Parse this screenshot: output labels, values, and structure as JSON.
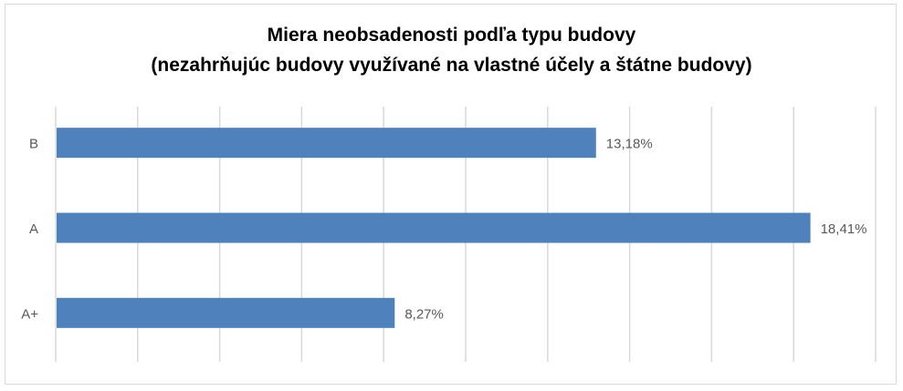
{
  "chart_data": {
    "type": "bar",
    "orientation": "horizontal",
    "title": "Miera neobsadenosti podľa typu budovy",
    "subtitle": "(nezahrňujúc budovy využívané na vlastné účely a štátne budovy)",
    "categories": [
      "B",
      "A",
      "A+"
    ],
    "values": [
      13.18,
      18.41,
      8.27
    ],
    "data_labels": [
      "13,18%",
      "18,41%",
      "8,27%"
    ],
    "xlabel": "",
    "ylabel": "",
    "xlim": [
      0,
      20
    ],
    "grid_step": 2,
    "grid": true,
    "legend": "none",
    "colors": {
      "bar": "#4f81bd",
      "grid": "#d9d9d9",
      "text": "#595959"
    }
  }
}
